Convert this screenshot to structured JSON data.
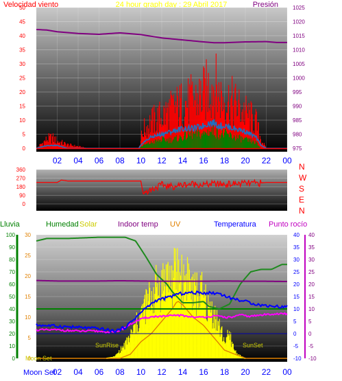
{
  "title": "24 hour graph day : 29 Abril 2017",
  "colors": {
    "wind": "#ff0000",
    "gust": "#ff0000",
    "wind_avg": "#1f6fc0",
    "pressure": "#800080",
    "direction": "#ff0000",
    "rain": "#008000",
    "humidity": "#1e8a1e",
    "solar": "#ffff00",
    "indoor_temp": "#800080",
    "uv": "#e08000",
    "temperature": "#0000ff",
    "dewpoint": "#ff00ff",
    "axis_text": "#ff0000",
    "time_text": "#0000ff"
  },
  "chart_data": [
    {
      "type": "line",
      "name": "wind-pressure",
      "title": "24 hour graph day : 29 Abril 2017",
      "left_axis_label": "Velocidad viento",
      "right_axis_label": "Presión",
      "ylim": [
        0,
        50
      ],
      "yticks": [
        0,
        5,
        10,
        15,
        20,
        25,
        30,
        35,
        40,
        45,
        50
      ],
      "y2lim": [
        975,
        1025
      ],
      "y2ticks": [
        975,
        980,
        985,
        990,
        995,
        1000,
        1005,
        1010,
        1015,
        1020,
        1025
      ],
      "xlim": [
        0,
        24
      ],
      "xticks": [
        "02",
        "04",
        "06",
        "08",
        "10",
        "12",
        "14",
        "16",
        "18",
        "20",
        "22",
        "00"
      ],
      "wind_profile": {
        "x": [
          0,
          1,
          1.5,
          2,
          3,
          4,
          5,
          6,
          7,
          8,
          9,
          9.8,
          10.2,
          11,
          12,
          13,
          14,
          15,
          16,
          16.5,
          17,
          17.5,
          18,
          19,
          20,
          21,
          21.5,
          22,
          23,
          24
        ],
        "gust_max": [
          0,
          5,
          6,
          4,
          2,
          1,
          0,
          0,
          0,
          0,
          0,
          0,
          10,
          15,
          18,
          22,
          25,
          27,
          30,
          34,
          37,
          30,
          28,
          25,
          20,
          15,
          5,
          0,
          0,
          0
        ],
        "avg": [
          0,
          1,
          1,
          1,
          0,
          0,
          0,
          0,
          0,
          0,
          0,
          0,
          2,
          4,
          5,
          6,
          7,
          7,
          8,
          9,
          9,
          8,
          8,
          7,
          6,
          4,
          1,
          0,
          0,
          0
        ],
        "low": [
          0,
          0,
          0,
          0,
          0,
          0,
          0,
          0,
          0,
          0,
          0,
          0,
          1,
          2,
          3,
          3,
          4,
          5,
          5,
          6,
          6,
          5,
          5,
          4,
          3,
          2,
          0,
          0,
          0,
          0
        ]
      },
      "pressure": {
        "x": [
          0,
          1,
          2,
          4,
          6,
          8,
          10,
          12,
          14,
          16,
          17,
          18,
          20,
          22,
          23,
          24
        ],
        "values": [
          1017.2,
          1017.0,
          1016.4,
          1015.8,
          1015.5,
          1016.0,
          1015.4,
          1014.2,
          1013.5,
          1012.8,
          1012.5,
          1012.5,
          1012.8,
          1012.9,
          1012.6,
          1012.6
        ]
      }
    },
    {
      "type": "line",
      "name": "wind-direction",
      "ylim": [
        0,
        360
      ],
      "yticks": [
        0,
        90,
        180,
        270,
        360
      ],
      "right_labels": [
        "N",
        "W",
        "S",
        "E",
        "N"
      ],
      "xlim": [
        0,
        24
      ],
      "values_x": [
        0,
        2,
        2.4,
        3,
        6,
        9,
        10,
        10.2,
        11,
        12,
        13,
        14,
        15,
        16,
        17,
        18,
        19,
        20,
        21,
        22,
        24
      ],
      "values": [
        225,
        225,
        250,
        240,
        240,
        240,
        240,
        120,
        150,
        200,
        180,
        200,
        210,
        200,
        210,
        205,
        210,
        215,
        215,
        225,
        225
      ]
    },
    {
      "type": "line",
      "name": "climate",
      "legend": [
        "Lluvia",
        "Humedad",
        "Solar",
        "Indoor temp",
        "UV",
        "Temperatura",
        "Punto rocío"
      ],
      "rain_axis": {
        "ylim": [
          0,
          100
        ],
        "yticks": [
          0,
          10,
          20,
          30,
          40,
          50,
          60,
          70,
          80,
          90,
          100
        ]
      },
      "hum_axis": {
        "ylim": [
          0,
          30
        ],
        "yticks": [
          0,
          5,
          10,
          15,
          20,
          25,
          30
        ]
      },
      "temp_axis": {
        "ylim": [
          -10,
          40
        ],
        "yticks": [
          -10,
          -5,
          0,
          5,
          10,
          15,
          20,
          25,
          30,
          35,
          40
        ]
      },
      "xlim": [
        0,
        24
      ],
      "xticks": [
        "02",
        "04",
        "06",
        "08",
        "10",
        "12",
        "14",
        "16",
        "18",
        "20",
        "22",
        "00"
      ],
      "annotations": [
        "Moon Set",
        "SunRise",
        "SunSet",
        "Moon Set"
      ],
      "humidity": {
        "x": [
          0,
          1,
          3,
          6,
          8.5,
          9.5,
          10.5,
          11.5,
          12.5,
          13,
          14,
          15,
          16,
          16.5,
          17.5,
          18.5,
          19.5,
          20.5,
          21.5,
          22.5,
          23.5,
          24
        ],
        "values": [
          95,
          97,
          97,
          98,
          98,
          95,
          82,
          68,
          60,
          54,
          45,
          45,
          46,
          42,
          40,
          44,
          60,
          70,
          72,
          72,
          76,
          76
        ]
      },
      "solar": {
        "x": [
          6.7,
          7.5,
          8.5,
          9.5,
          10.5,
          11.5,
          12,
          12.5,
          13,
          13.5,
          14,
          14.5,
          15,
          15.5,
          16,
          16.5,
          17,
          17.5,
          18,
          18.5,
          19,
          19.5,
          20
        ],
        "values": [
          0,
          2,
          15,
          35,
          60,
          78,
          82,
          92,
          85,
          100,
          84,
          96,
          70,
          75,
          68,
          55,
          52,
          35,
          20,
          25,
          8,
          3,
          0
        ]
      },
      "indoor_temp": {
        "x": [
          0,
          2,
          4,
          6,
          8,
          10,
          12,
          14,
          16,
          18,
          20,
          22,
          24
        ],
        "values": [
          21.5,
          21.3,
          21.3,
          21.3,
          21.4,
          21.3,
          21.2,
          21.2,
          21.2,
          21.3,
          21.2,
          21.2,
          21.1
        ]
      },
      "uv_x": [
        0,
        8,
        9,
        10,
        11,
        12,
        13,
        13.5,
        14,
        15,
        16,
        17,
        18,
        19,
        20,
        24
      ],
      "uv_values": [
        0,
        0,
        1,
        4,
        6,
        9,
        12,
        14,
        13,
        10,
        8,
        5,
        2,
        1,
        0,
        0
      ],
      "temperature": {
        "x": [
          0,
          2,
          4,
          6,
          7.5,
          8.5,
          9.5,
          10.5,
          11.5,
          12.5,
          13.5,
          14.5,
          15.5,
          16.5,
          17.5,
          18.5,
          19.5,
          20.5,
          21.5,
          22.5,
          23.5,
          24
        ],
        "values": [
          3.5,
          3.0,
          2.5,
          2.0,
          1.0,
          2.5,
          6.5,
          10.5,
          13.5,
          14.5,
          16,
          16.5,
          16.5,
          16.5,
          16.3,
          14.5,
          13.5,
          12.5,
          11.5,
          11.2,
          10.8,
          11
        ]
      },
      "dewpoint": {
        "x": [
          0,
          2,
          4,
          6,
          7.5,
          8.5,
          9.5,
          10.5,
          11.5,
          12.5,
          13.5,
          14.5,
          15.5,
          16.5,
          17.5,
          18.5,
          19.5,
          20.5,
          21.5,
          22.5,
          24
        ],
        "values": [
          1.5,
          1.5,
          1.0,
          1.0,
          0.5,
          2.5,
          5.0,
          6.5,
          7.0,
          7.0,
          7.5,
          7.0,
          6.5,
          7.0,
          7.0,
          6.5,
          7.5,
          7.0,
          7.5,
          8.0,
          8.0
        ]
      },
      "rain_level": 40,
      "zero_temp_line": 0
    }
  ]
}
